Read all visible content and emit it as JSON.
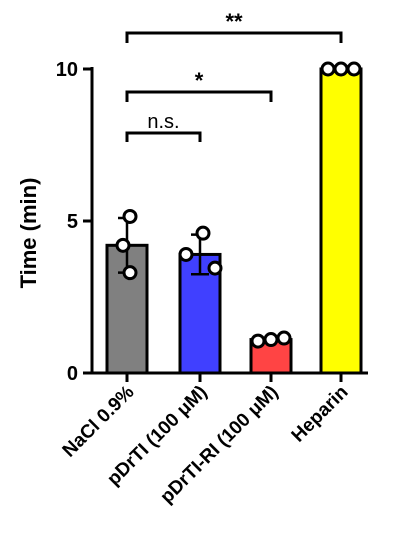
{
  "chart_data": {
    "type": "bar",
    "title": "",
    "ylabel": "Time  (min)",
    "xlabel": "",
    "ylim": [
      0,
      10
    ],
    "yticks": [
      0,
      5,
      10
    ],
    "grid": false,
    "categories": [
      "NaCl 0.9%",
      "pDrTI (100 μM)",
      "pDrTI-RI (100 μM)",
      "Heparin"
    ],
    "values": [
      4.2,
      3.9,
      1.1,
      10.0
    ],
    "errors": [
      0.9,
      0.65,
      0.05,
      0.0
    ],
    "points": [
      [
        5.15,
        4.2,
        3.3
      ],
      [
        4.6,
        3.9,
        3.45
      ],
      [
        1.05,
        1.1,
        1.15
      ],
      [
        10.0,
        10.0,
        10.0
      ]
    ],
    "colors": [
      "#808080",
      "#4040ff",
      "#ff4444",
      "#ffff00"
    ],
    "significance": [
      {
        "from": 0,
        "to": 1,
        "label": "n.s."
      },
      {
        "from": 0,
        "to": 2,
        "label": "*"
      },
      {
        "from": 0,
        "to": 3,
        "label": "**"
      }
    ]
  }
}
